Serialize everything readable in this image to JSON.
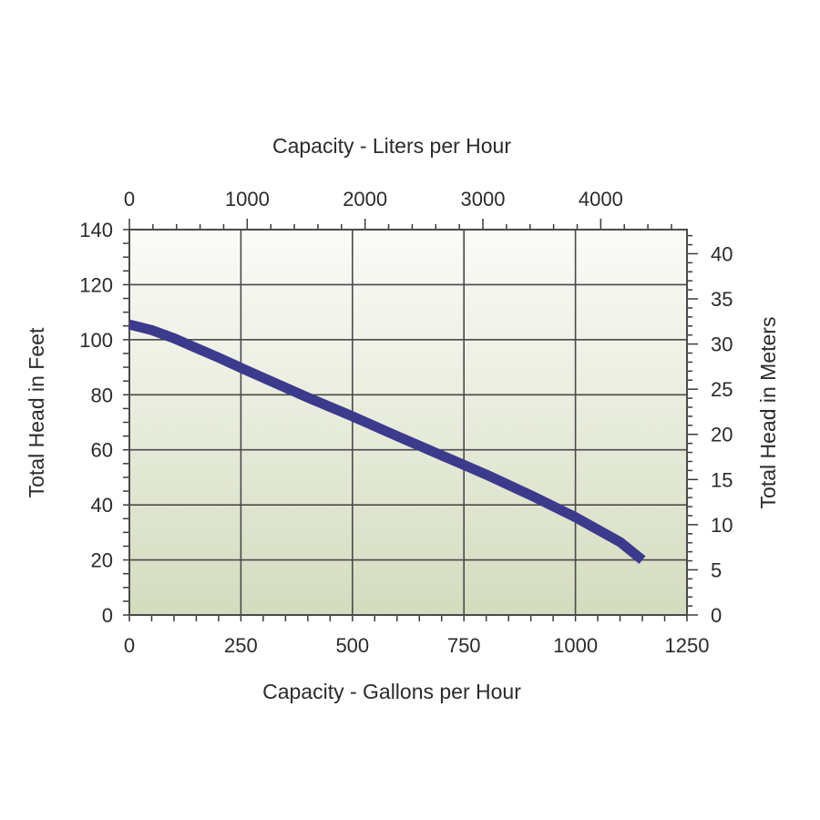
{
  "chart_data": {
    "type": "line",
    "top_axis_title": "Capacity - Liters per Hour",
    "xlabel": "Capacity - Gallons per Hour",
    "ylabel": "Total Head in Feet",
    "right_axis_title": "Total Head in Meters",
    "x_ticks": [
      "0",
      "250",
      "500",
      "750",
      "1000",
      "1250"
    ],
    "x_tick_values": [
      0,
      250,
      500,
      750,
      1000,
      1250
    ],
    "y_ticks": [
      "0",
      "20",
      "40",
      "60",
      "80",
      "100",
      "120",
      "140"
    ],
    "y_tick_values": [
      0,
      20,
      40,
      60,
      80,
      100,
      120,
      140
    ],
    "top_ticks": [
      "0",
      "1000",
      "2000",
      "3000",
      "4000"
    ],
    "top_tick_values": [
      0,
      1000,
      2000,
      3000,
      4000
    ],
    "right_ticks": [
      "0",
      "5",
      "10",
      "15",
      "20",
      "25",
      "30",
      "35",
      "40"
    ],
    "right_tick_values": [
      0,
      5,
      10,
      15,
      20,
      25,
      30,
      35,
      40
    ],
    "xlim": [
      0,
      1250
    ],
    "ylim": [
      0,
      140
    ],
    "top_lim": [
      0,
      4731.8
    ],
    "right_lim": [
      0,
      42.67
    ],
    "grid": true,
    "colors": {
      "line": "#3c3a8c",
      "grid": "#4a4a4a",
      "background_top": "#fbfbf8",
      "background_bottom": "#d4dcbf"
    },
    "series": [
      {
        "x": [
          0,
          50,
          100,
          150,
          200,
          250,
          300,
          400,
          500,
          600,
          700,
          750,
          800,
          900,
          1000,
          1100,
          1150
        ],
        "y": [
          105.5,
          103.5,
          100.5,
          97.0,
          93.5,
          89.8,
          86.2,
          79.0,
          72.2,
          65.0,
          58.0,
          54.5,
          51.0,
          43.5,
          35.5,
          26.5,
          20.0
        ]
      }
    ]
  }
}
